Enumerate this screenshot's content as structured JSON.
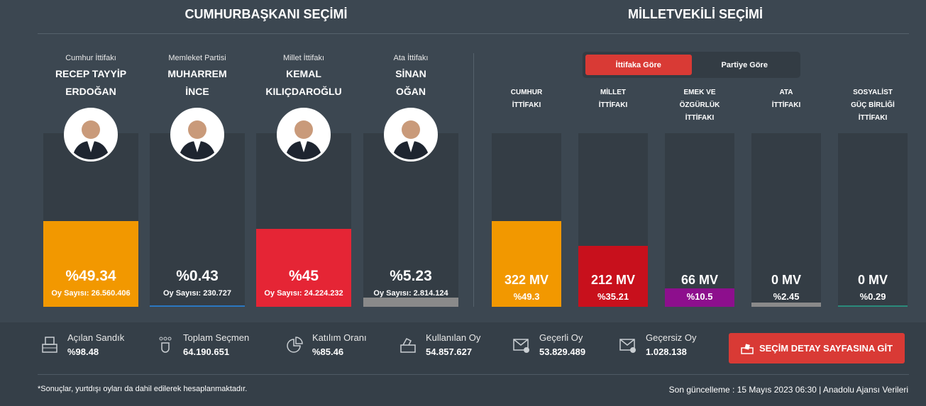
{
  "headers": {
    "president": "CUMHURBAŞKANI SEÇİMİ",
    "parliament": "MİLLETVEKİLİ SEÇİMİ"
  },
  "candidates": [
    {
      "alliance": "Cumhur İttifakı",
      "name1": "RECEP TAYYİP",
      "name2": "ERDOĞAN",
      "percent_label": "%49.34",
      "percent": 49.34,
      "votes": "Oy Sayısı: 26.560.406",
      "color": "#f29800"
    },
    {
      "alliance": "Memleket Partisi",
      "name1": "MUHARREM",
      "name2": "İNCE",
      "percent_label": "%0.43",
      "percent": 0.43,
      "votes": "Oy Sayısı: 230.727",
      "color": "#2a77c0"
    },
    {
      "alliance": "Millet İttifakı",
      "name1": "KEMAL",
      "name2": "KILIÇDAROĞLU",
      "percent_label": "%45",
      "percent": 45,
      "votes": "Oy Sayısı: 24.224.232",
      "color": "#e52535"
    },
    {
      "alliance": "Ata İttifakı",
      "name1": "SİNAN",
      "name2": "OĞAN",
      "percent_label": "%5.23",
      "percent": 5.23,
      "votes": "Oy Sayısı: 2.814.124",
      "color": "#8a8a8a"
    }
  ],
  "toggle": {
    "active": "İttifaka Göre",
    "inactive": "Partiye Göre"
  },
  "alliances": [
    {
      "l1": "CUMHUR",
      "l2": "İTTİFAKI",
      "l3": "",
      "seats": "322 MV",
      "percent_label": "%49.3",
      "percent": 49.3,
      "color": "#f29800"
    },
    {
      "l1": "MİLLET",
      "l2": "İTTİFAKI",
      "l3": "",
      "seats": "212 MV",
      "percent_label": "%35.21",
      "percent": 35.21,
      "color": "#c8101c"
    },
    {
      "l1": "EMEK VE",
      "l2": "ÖZGÜRLÜK",
      "l3": "İTTİFAKI",
      "seats": "66 MV",
      "percent_label": "%10.5",
      "percent": 10.5,
      "color": "#8d0f8d"
    },
    {
      "l1": "ATA",
      "l2": "İTTİFAKI",
      "l3": "",
      "seats": "0 MV",
      "percent_label": "%2.45",
      "percent": 2.45,
      "color": "#8a8a8a"
    },
    {
      "l1": "SOSYALİST",
      "l2": "GÜÇ BİRLİĞİ",
      "l3": "İTTİFAKI",
      "seats": "0 MV",
      "percent_label": "%0.29",
      "percent": 0.29,
      "color": "#2a8a7a"
    }
  ],
  "stats": [
    {
      "label": "Açılan Sandık",
      "value": "%98.48",
      "icon": "ballot-box-icon"
    },
    {
      "label": "Toplam Seçmen",
      "value": "64.190.651",
      "icon": "people-icon"
    },
    {
      "label": "Katılım Oranı",
      "value": "%85.46",
      "icon": "pie-chart-icon"
    },
    {
      "label": "Kullanılan Oy",
      "value": "54.857.627",
      "icon": "vote-icon"
    },
    {
      "label": "Geçerli Oy",
      "value": "53.829.489",
      "icon": "valid-envelope-icon"
    },
    {
      "label": "Geçersiz Oy",
      "value": "1.028.138",
      "icon": "invalid-envelope-icon"
    }
  ],
  "detail_button": "SEÇİM DETAY SAYFASINA GİT",
  "footnote": "*Sonuçlar, yurtdışı oyları da dahil edilerek hesaplanmaktadır.",
  "updated": "Son güncelleme : 15 Mayıs 2023 06:30 | Anadolu Ajansı Verileri"
}
